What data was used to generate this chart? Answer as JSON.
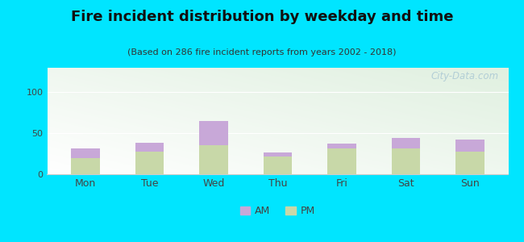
{
  "title": "Fire incident distribution by weekday and time",
  "subtitle": "(Based on 286 fire incident reports from years 2002 - 2018)",
  "categories": [
    "Mon",
    "Tue",
    "Wed",
    "Thu",
    "Fri",
    "Sat",
    "Sun"
  ],
  "am_values": [
    12,
    10,
    30,
    5,
    5,
    12,
    14
  ],
  "pm_values": [
    20,
    28,
    35,
    22,
    32,
    32,
    28
  ],
  "am_color": "#c8a8d8",
  "pm_color": "#c8d8a8",
  "background_outer": "#00e5ff",
  "ylim": [
    0,
    130
  ],
  "yticks": [
    0,
    50,
    100
  ],
  "bar_width": 0.45,
  "watermark": "⬤ City-Data.com",
  "title_fontsize": 13,
  "subtitle_fontsize": 8
}
